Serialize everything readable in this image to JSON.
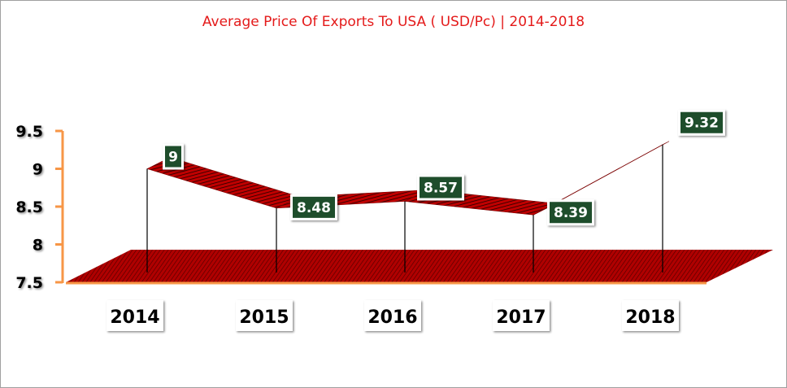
{
  "chart_data": {
    "type": "line",
    "style": "3d-ribbon",
    "title": "Average Price Of Exports To USA ( USD/Pc) | 2014-2018",
    "categories": [
      "2014",
      "2015",
      "2016",
      "2017",
      "2018"
    ],
    "values": [
      9,
      8.48,
      8.57,
      8.39,
      9.32
    ],
    "data_labels": [
      "9",
      "8.48",
      "8.57",
      "8.39",
      "9.32"
    ],
    "yticks": [
      "7.5",
      "8",
      "8.5",
      "9",
      "9.5"
    ],
    "ylim": [
      7.5,
      9.5
    ],
    "xlabel": "",
    "ylabel": "",
    "grid": false,
    "colors": {
      "ribbon": "#c00000",
      "floor": "#a00000",
      "axis": "#f79646",
      "label_bg": "#1e4d2b",
      "title": "#e41a1a"
    }
  }
}
